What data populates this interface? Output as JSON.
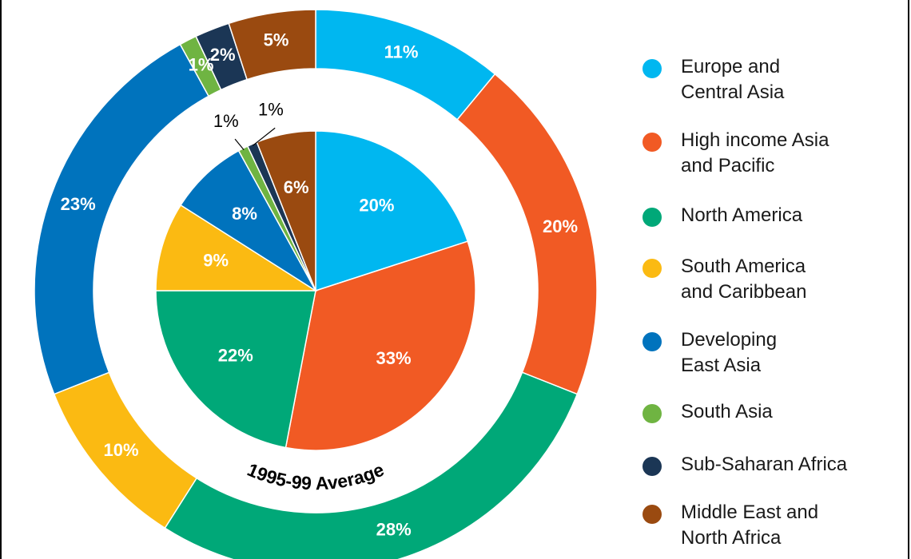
{
  "chart_data": {
    "type": "pie",
    "style": "nested-donut",
    "regions": [
      {
        "name": "Europe and Central Asia",
        "color": "#00b7f0"
      },
      {
        "name": "High income Asia and Pacific",
        "color": "#f15a24"
      },
      {
        "name": "North America",
        "color": "#00a878"
      },
      {
        "name": "South America and Caribbean",
        "color": "#fbba12"
      },
      {
        "name": "Developing East Asia",
        "color": "#0073bd"
      },
      {
        "name": "South Asia",
        "color": "#6fb442"
      },
      {
        "name": "Sub-Saharan Africa",
        "color": "#1b3655"
      },
      {
        "name": "Middle East and North Africa",
        "color": "#9a4a10"
      }
    ],
    "inner": {
      "title": "1995-99 Average",
      "values": [
        20,
        33,
        22,
        9,
        8,
        1,
        1,
        6
      ],
      "labels": [
        "20%",
        "33%",
        "22%",
        "9%",
        "8%",
        "1%",
        "1%",
        "6%"
      ]
    },
    "outer": {
      "title": "",
      "values": [
        11,
        20,
        28,
        10,
        23,
        1,
        2,
        5
      ],
      "labels": [
        "11%",
        "20%",
        "28%",
        "10%",
        "23%",
        "1%",
        "2%",
        "5%"
      ]
    },
    "legend_position": "right"
  },
  "legend": {
    "items": [
      {
        "lines": [
          "Europe and",
          "Central Asia"
        ],
        "color": "#00b7f0"
      },
      {
        "lines": [
          "High income Asia",
          "and Pacific"
        ],
        "color": "#f15a24"
      },
      {
        "lines": [
          "North America"
        ],
        "color": "#00a878"
      },
      {
        "lines": [
          "South America",
          "and Caribbean"
        ],
        "color": "#fbba12"
      },
      {
        "lines": [
          "Developing",
          "East Asia"
        ],
        "color": "#0073bd"
      },
      {
        "lines": [
          "South Asia"
        ],
        "color": "#6fb442"
      },
      {
        "lines": [
          "Sub-Saharan Africa"
        ],
        "color": "#1b3655"
      },
      {
        "lines": [
          "Middle East and",
          "North Africa"
        ],
        "color": "#9a4a10"
      }
    ]
  }
}
